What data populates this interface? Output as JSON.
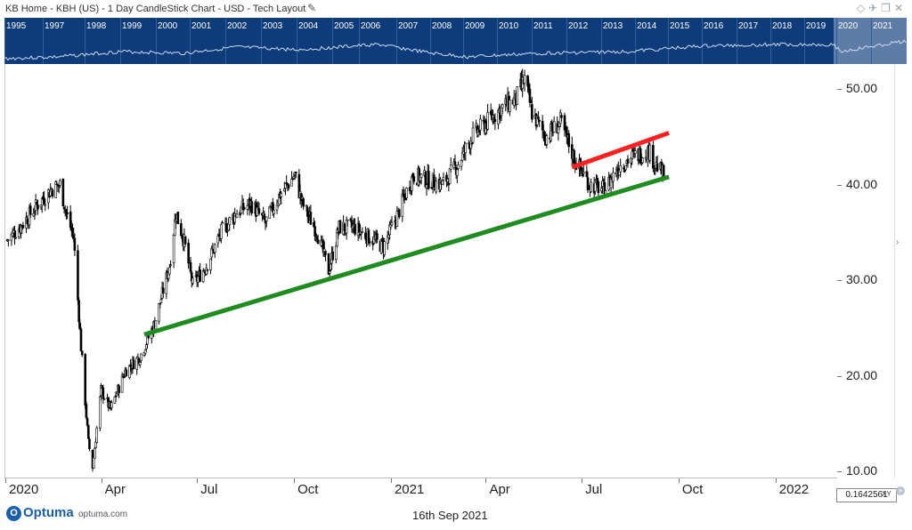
{
  "window": {
    "title": "KB Home - KBH (US) - 1 Day CandleStick Chart - USD - Tech Layout",
    "edit_icon": "pencil-icon",
    "right_icons": [
      "diamond-icon",
      "pin-icon",
      "restore-icon",
      "close-icon"
    ]
  },
  "overview": {
    "years": [
      "1995",
      "1997",
      "1998",
      "1999",
      "2000",
      "2001",
      "2002",
      "2003",
      "2004",
      "2005",
      "2006",
      "2007",
      "2008",
      "2009",
      "2010",
      "2011",
      "2012",
      "2013",
      "2014",
      "2015",
      "2016",
      "2017",
      "2018",
      "2019",
      "2020",
      "2021"
    ],
    "background": "#0e3b7a"
  },
  "chart_data": {
    "type": "candlestick",
    "symbol": "KBH",
    "x_tick_labels": [
      "2020",
      "Apr",
      "Jul",
      "Oct",
      "2021",
      "Apr",
      "Jul",
      "Oct",
      "2022"
    ],
    "y_tick_labels": [
      "50.00",
      "40.00",
      "30.00",
      "20.00",
      "10.00"
    ],
    "ylim": [
      9.5,
      52.5
    ],
    "xlim": [
      "2020-01-01",
      "2021-12-31"
    ],
    "close_series": [
      {
        "date": "2020-01-02",
        "close": 34.2
      },
      {
        "date": "2020-01-16",
        "close": 35.8
      },
      {
        "date": "2020-01-30",
        "close": 37.8
      },
      {
        "date": "2020-02-13",
        "close": 39.5
      },
      {
        "date": "2020-02-21",
        "close": 40.0
      },
      {
        "date": "2020-02-27",
        "close": 37.0
      },
      {
        "date": "2020-03-05",
        "close": 34.5
      },
      {
        "date": "2020-03-12",
        "close": 23.0
      },
      {
        "date": "2020-03-19",
        "close": 13.0
      },
      {
        "date": "2020-03-23",
        "close": 10.5
      },
      {
        "date": "2020-03-31",
        "close": 18.5
      },
      {
        "date": "2020-04-09",
        "close": 16.5
      },
      {
        "date": "2020-04-23",
        "close": 20.5
      },
      {
        "date": "2020-05-07",
        "close": 22.0
      },
      {
        "date": "2020-05-21",
        "close": 25.5
      },
      {
        "date": "2020-06-04",
        "close": 31.5
      },
      {
        "date": "2020-06-10",
        "close": 37.0
      },
      {
        "date": "2020-06-18",
        "close": 34.0
      },
      {
        "date": "2020-06-26",
        "close": 29.5
      },
      {
        "date": "2020-07-09",
        "close": 31.5
      },
      {
        "date": "2020-07-23",
        "close": 35.0
      },
      {
        "date": "2020-08-06",
        "close": 37.0
      },
      {
        "date": "2020-08-20",
        "close": 38.0
      },
      {
        "date": "2020-09-03",
        "close": 36.0
      },
      {
        "date": "2020-09-17",
        "close": 39.0
      },
      {
        "date": "2020-10-01",
        "close": 41.0
      },
      {
        "date": "2020-10-08",
        "close": 38.0
      },
      {
        "date": "2020-10-22",
        "close": 35.0
      },
      {
        "date": "2020-11-02",
        "close": 31.0
      },
      {
        "date": "2020-11-12",
        "close": 35.5
      },
      {
        "date": "2020-11-26",
        "close": 35.5
      },
      {
        "date": "2020-12-10",
        "close": 34.5
      },
      {
        "date": "2020-12-24",
        "close": 33.5
      },
      {
        "date": "2021-01-07",
        "close": 37.0
      },
      {
        "date": "2021-01-21",
        "close": 41.0
      },
      {
        "date": "2021-02-04",
        "close": 40.5
      },
      {
        "date": "2021-02-18",
        "close": 40.0
      },
      {
        "date": "2021-03-04",
        "close": 42.0
      },
      {
        "date": "2021-03-18",
        "close": 45.0
      },
      {
        "date": "2021-04-01",
        "close": 46.5
      },
      {
        "date": "2021-04-15",
        "close": 48.0
      },
      {
        "date": "2021-04-29",
        "close": 49.0
      },
      {
        "date": "2021-05-07",
        "close": 51.0
      },
      {
        "date": "2021-05-14",
        "close": 47.5
      },
      {
        "date": "2021-05-27",
        "close": 45.0
      },
      {
        "date": "2021-06-10",
        "close": 46.5
      },
      {
        "date": "2021-06-24",
        "close": 42.5
      },
      {
        "date": "2021-07-08",
        "close": 40.0
      },
      {
        "date": "2021-07-22",
        "close": 39.5
      },
      {
        "date": "2021-08-05",
        "close": 42.0
      },
      {
        "date": "2021-08-19",
        "close": 43.0
      },
      {
        "date": "2021-09-02",
        "close": 43.5
      },
      {
        "date": "2021-09-09",
        "close": 42.0
      },
      {
        "date": "2021-09-16",
        "close": 41.0
      }
    ],
    "trendlines": [
      {
        "color": "#1e8c1e",
        "from": {
          "date": "2020-05-11",
          "value": 24.3
        },
        "to": {
          "date": "2021-09-21",
          "value": 40.8
        }
      },
      {
        "color": "#ff2020",
        "from": {
          "date": "2021-06-21",
          "value": 41.8
        },
        "to": {
          "date": "2021-09-21",
          "value": 45.4
        }
      }
    ],
    "grid": false,
    "legend": "none"
  },
  "cursor_readout": {
    "value": "0.1642561",
    "mode": "XY"
  },
  "footer": {
    "logo_initial": "O",
    "logo": "Optuma",
    "url": "optuma.com",
    "date": "16th Sep 2021"
  }
}
